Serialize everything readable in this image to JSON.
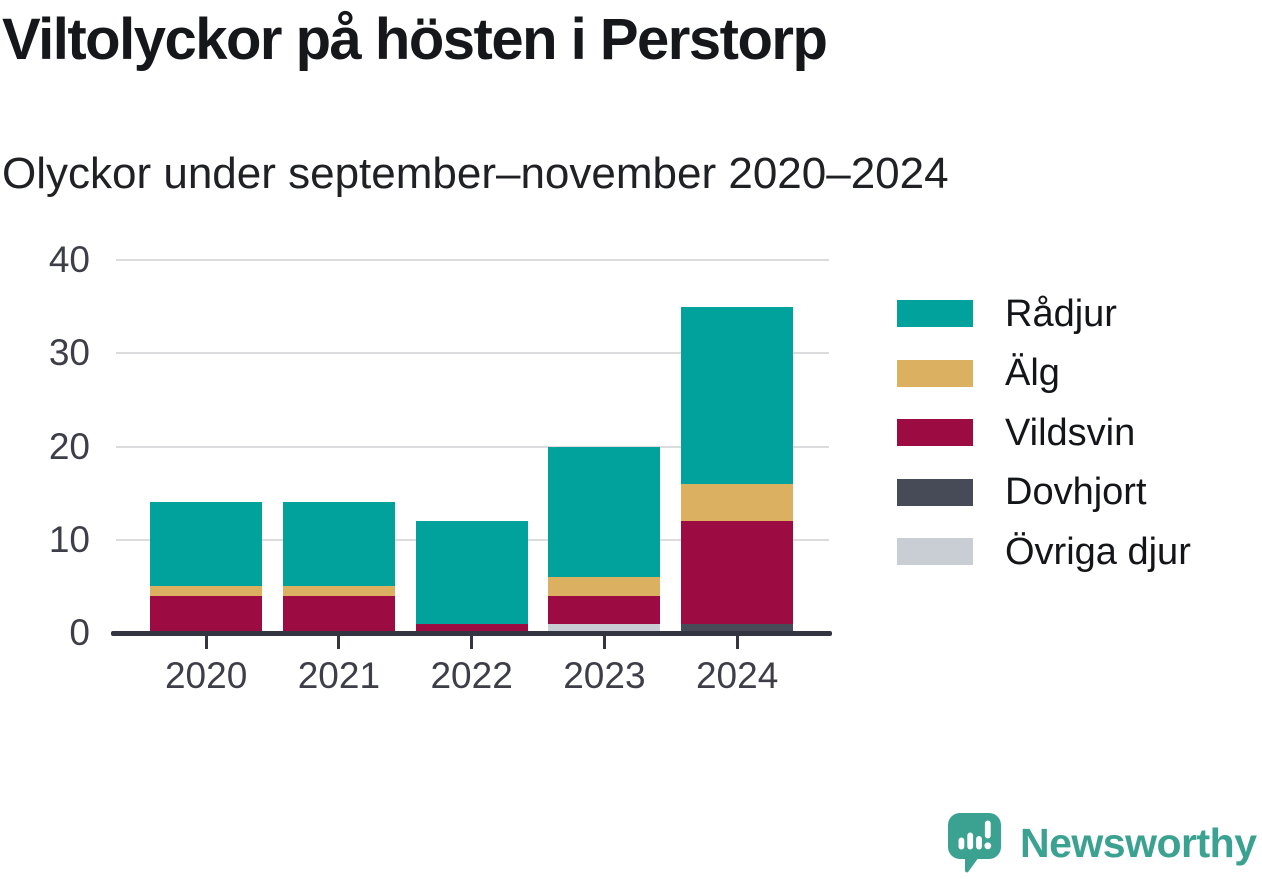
{
  "header": {
    "title": "Viltolyckor på hösten i Perstorp",
    "subtitle": "Olyckor under september–november 2020–2024"
  },
  "chart_data": {
    "type": "bar",
    "stacked": true,
    "title": "Viltolyckor på hösten i Perstorp",
    "subtitle": "Olyckor under september–november 2020–2024",
    "categories": [
      "2020",
      "2021",
      "2022",
      "2023",
      "2024"
    ],
    "series": [
      {
        "name": "Rådjur",
        "color": "#00a29b",
        "values": [
          9,
          9,
          11,
          14,
          19
        ]
      },
      {
        "name": "Älg",
        "color": "#dbb161",
        "values": [
          1,
          1,
          0,
          2,
          4
        ]
      },
      {
        "name": "Vildsvin",
        "color": "#9c0b42",
        "values": [
          4,
          4,
          1,
          3,
          11
        ]
      },
      {
        "name": "Dovhjort",
        "color": "#474a57",
        "values": [
          0,
          0,
          0,
          0,
          1
        ]
      },
      {
        "name": "Övriga djur",
        "color": "#c9cdd4",
        "values": [
          0,
          0,
          0,
          1,
          0
        ]
      }
    ],
    "stack_order_bottom_to_top": [
      "Övriga djur",
      "Dovhjort",
      "Vildsvin",
      "Älg",
      "Rådjur"
    ],
    "totals": [
      14,
      14,
      12,
      20,
      35
    ],
    "xlabel": "",
    "ylabel": "",
    "ylim": [
      0,
      40
    ],
    "yticks": [
      0,
      10,
      20,
      30,
      40
    ],
    "grid": "horizontal",
    "legend_position": "right",
    "axis_color": "#343540",
    "grid_color": "#dcdcde",
    "tick_label_color": "#3d3e47"
  },
  "branding": {
    "name": "Newsworthy",
    "color": "#3ba191",
    "icon": "bar-chart-speech-bubble"
  }
}
